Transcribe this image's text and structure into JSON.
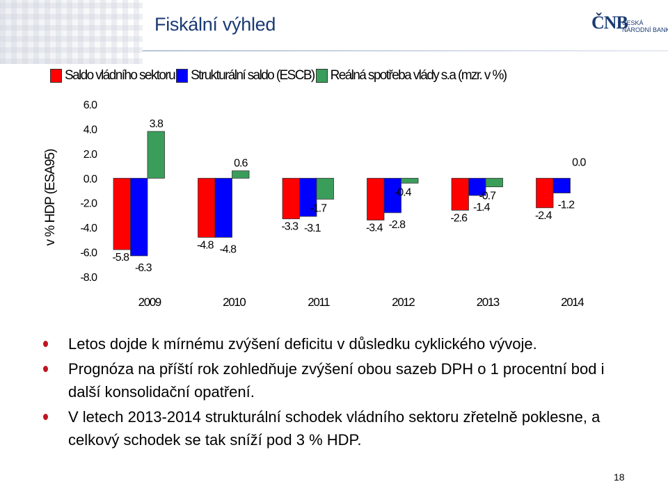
{
  "slide": {
    "title": "Fiskální výhled",
    "logo_mark": "ČNB",
    "logo_line1": "ČESKÁ",
    "logo_line2": "NÁRODNÍ BANKA",
    "page_number": "18"
  },
  "bullets": [
    "Letos dojde k mírnému zvýšení deficitu v důsledku cyklického vývoje.",
    "Prognóza na příští rok zohledňuje zvýšení obou sazeb DPH o 1 procentní bod i další konsolidační opatření.",
    "V letech 2013-2014 strukturální schodek vládního sektoru zřetelně poklesne, a celkový schodek se tak sníží pod 3 % HDP."
  ],
  "chart_data": {
    "type": "bar",
    "title": "",
    "xlabel": "",
    "ylabel": "v % HDP (ESA95)",
    "categories": [
      "2009",
      "2010",
      "2011",
      "2012",
      "2013",
      "2014"
    ],
    "series": [
      {
        "name": "Saldo vládního sektoru",
        "color": "#ff0000",
        "values": [
          -5.8,
          -4.8,
          -3.3,
          -3.4,
          -2.6,
          -2.4
        ]
      },
      {
        "name": "Strukturální saldo (ESCB)",
        "color": "#0000ff",
        "values": [
          -6.3,
          -4.8,
          -3.1,
          -2.8,
          -1.4,
          -1.2
        ]
      },
      {
        "name": "Reálná spotřeba vlády s.a (mzr. v %)",
        "color": "#3a9e5a",
        "values": [
          3.8,
          0.6,
          -1.7,
          -0.4,
          -0.7,
          0.0
        ]
      }
    ],
    "data_labels": [
      [
        "-5.8",
        "-4.8",
        "-3.3",
        "-3.4",
        "-2.6",
        "-2.4"
      ],
      [
        "-6.3",
        "-4.8",
        "-3.1",
        "-2.8",
        "-1.4",
        "-1.2"
      ],
      [
        "3.8",
        "0.6",
        "-1.7",
        "-0.4",
        "-0.7",
        "0.0"
      ]
    ],
    "yticks": [
      "6.0",
      "4.0",
      "2.0",
      "0.0",
      "-2.0",
      "-4.0",
      "-6.0",
      "-8.0"
    ],
    "ylim": [
      -8,
      6
    ],
    "grid": false,
    "legend_position": "top"
  }
}
